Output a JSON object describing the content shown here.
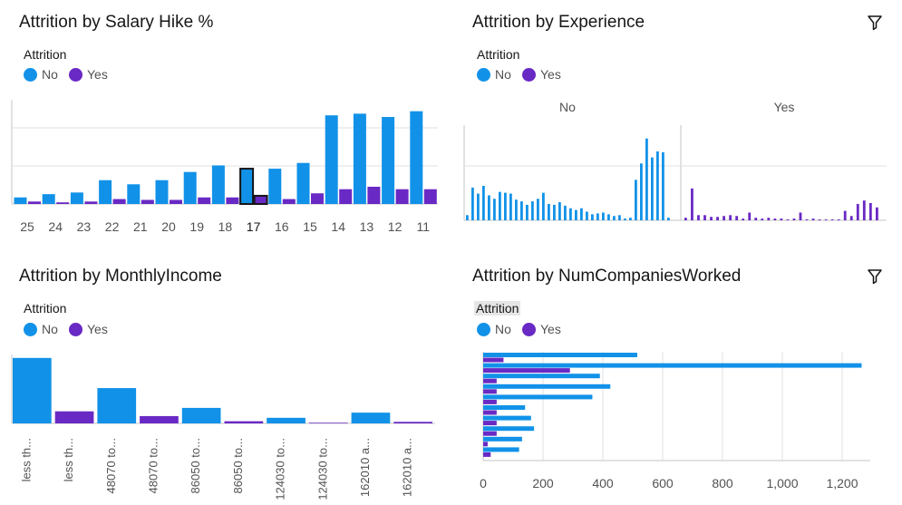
{
  "colors": {
    "no": "#1192e8",
    "yes": "#6929c4",
    "grid": "#e0e0e0",
    "axis": "#c6c6c6",
    "tick": "#525252"
  },
  "legend": {
    "title": "Attrition",
    "items": [
      {
        "label": "No",
        "color": "#1192e8"
      },
      {
        "label": "Yes",
        "color": "#6929c4"
      }
    ]
  },
  "panels": {
    "salary": {
      "title": "Attrition by Salary Hike %"
    },
    "experience": {
      "title": "Attrition by Experience",
      "facets": [
        "No",
        "Yes"
      ],
      "filter_icon": "filter-icon"
    },
    "income": {
      "title": "Attrition by MonthlyIncome"
    },
    "companies": {
      "title": "Attrition by NumCompaniesWorked",
      "filter_icon": "filter-icon"
    }
  },
  "chart_data": [
    {
      "type": "bar",
      "title": "Attrition by Salary Hike %",
      "categories": [
        "25",
        "24",
        "23",
        "22",
        "21",
        "20",
        "19",
        "18",
        "17",
        "16",
        "15",
        "14",
        "13",
        "12",
        "11"
      ],
      "highlighted_category": "17",
      "series": [
        {
          "name": "No",
          "values": [
            8,
            12,
            14,
            29,
            24,
            29,
            39,
            47,
            43,
            43,
            50,
            108,
            110,
            106,
            113
          ]
        },
        {
          "name": "Yes",
          "values": [
            3,
            2,
            3,
            6,
            5,
            5,
            8,
            8,
            10,
            6,
            13,
            18,
            21,
            18,
            18
          ]
        }
      ],
      "ylim": [
        0,
        130
      ],
      "grid": true,
      "legend": "top-left"
    },
    {
      "type": "bar",
      "title": "Attrition by Experience",
      "facets": [
        "No",
        "Yes"
      ],
      "series": [
        {
          "name": "No",
          "values": [
            6,
            38,
            31,
            40,
            29,
            25,
            33,
            32,
            31,
            24,
            22,
            18,
            22,
            25,
            32,
            19,
            18,
            21,
            17,
            14,
            12,
            14,
            10,
            7,
            8,
            9,
            7,
            5,
            6,
            2,
            3,
            47,
            66,
            95,
            73,
            80,
            79,
            3
          ]
        },
        {
          "name": "Yes",
          "values": [
            3,
            37,
            6,
            6,
            4,
            4,
            5,
            6,
            5,
            2,
            9,
            3,
            2,
            3,
            2,
            2,
            1,
            2,
            9,
            1,
            2,
            1,
            1,
            1,
            1,
            11,
            5,
            19,
            23,
            20,
            15
          ]
        }
      ],
      "grid": true,
      "legend": "top-left"
    },
    {
      "type": "bar",
      "title": "Attrition by MonthlyIncome",
      "categories": [
        "less th...",
        "less th...",
        "48070 to...",
        "48070 to...",
        "86050 to...",
        "86050 to...",
        "124030 to...",
        "124030 to...",
        "162010 a...",
        "162010 a..."
      ],
      "values": [
        760,
        140,
        410,
        85,
        180,
        25,
        65,
        8,
        125,
        18
      ],
      "colors": [
        "no",
        "yes",
        "no",
        "yes",
        "no",
        "yes",
        "no",
        "yes",
        "no",
        "yes"
      ],
      "ylim": [
        0,
        800
      ],
      "legend": "top-left"
    },
    {
      "type": "bar",
      "orientation": "horizontal",
      "title": "Attrition by NumCompaniesWorked",
      "series": [
        {
          "name": "No",
          "values": [
            515,
            1265,
            390,
            425,
            365,
            140,
            160,
            170,
            130,
            120
          ]
        },
        {
          "name": "Yes",
          "values": [
            68,
            290,
            45,
            45,
            45,
            45,
            45,
            45,
            15,
            25
          ]
        }
      ],
      "x_ticks": [
        "0",
        "200",
        "400",
        "600",
        "800",
        "1,000",
        "1,200"
      ],
      "xlim": [
        0,
        1300
      ],
      "grid": true,
      "legend": "top-left"
    }
  ]
}
